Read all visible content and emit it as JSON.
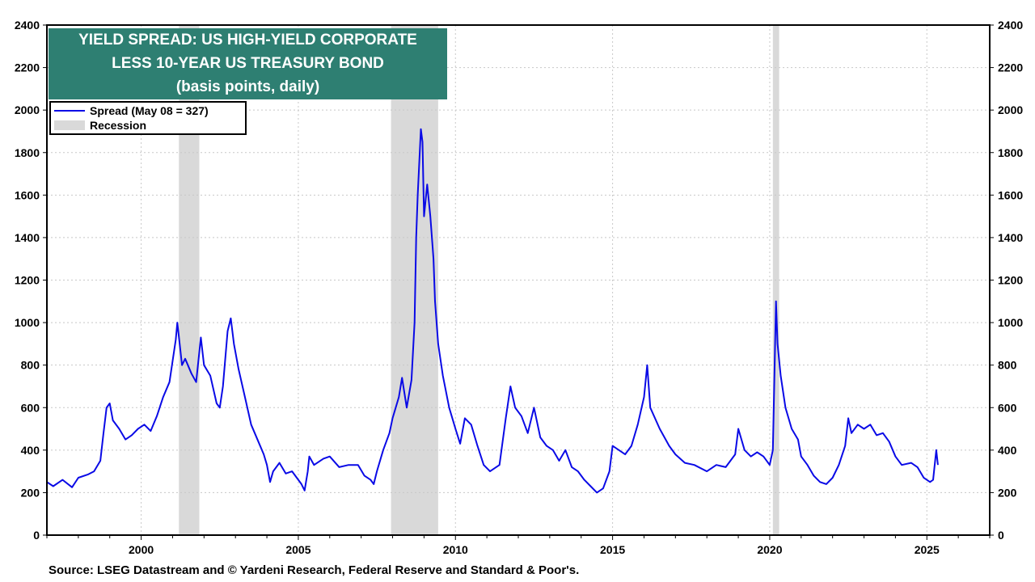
{
  "colors": {
    "series": "#0a0ae6",
    "recession": "#d9d9d9",
    "title_bg": "#2e7f72",
    "grid": "#c8c8c8"
  },
  "title": {
    "line1": "YIELD SPREAD: US HIGH-YIELD CORPORATE",
    "line2": "LESS 10-YEAR US TREASURY BOND",
    "line3": "(basis points, daily)"
  },
  "legend": {
    "series_label": "Spread (May 08 = 327)",
    "recession_label": "Recession"
  },
  "source": "Source: LSEG Datastream and © Yardeni Research, Federal Reserve and Standard & Poor's.",
  "chart_data": {
    "type": "line",
    "title": "YIELD SPREAD: US HIGH-YIELD CORPORATE LESS 10-YEAR US TREASURY BOND",
    "subtitle": "(basis points, daily)",
    "xlabel": "",
    "ylabel": "",
    "xlim": [
      1997.0,
      2027.0
    ],
    "ylim": [
      0,
      2400
    ],
    "x_ticks": [
      2000,
      2005,
      2010,
      2015,
      2020,
      2025
    ],
    "y_ticks": [
      0,
      200,
      400,
      600,
      800,
      1000,
      1200,
      1400,
      1600,
      1800,
      2000,
      2200,
      2400
    ],
    "grid": true,
    "legend_position": "top-left",
    "recessions": [
      [
        2001.2,
        2001.85
      ],
      [
        2007.95,
        2009.45
      ],
      [
        2020.1,
        2020.3
      ]
    ],
    "series": [
      {
        "name": "Spread (May 08 = 327)",
        "points": [
          [
            1997.0,
            250
          ],
          [
            1997.2,
            230
          ],
          [
            1997.5,
            260
          ],
          [
            1997.8,
            225
          ],
          [
            1998.0,
            270
          ],
          [
            1998.3,
            285
          ],
          [
            1998.5,
            300
          ],
          [
            1998.7,
            350
          ],
          [
            1998.8,
            480
          ],
          [
            1998.9,
            600
          ],
          [
            1999.0,
            620
          ],
          [
            1999.1,
            540
          ],
          [
            1999.3,
            500
          ],
          [
            1999.5,
            450
          ],
          [
            1999.7,
            470
          ],
          [
            1999.9,
            500
          ],
          [
            2000.1,
            520
          ],
          [
            2000.3,
            490
          ],
          [
            2000.5,
            560
          ],
          [
            2000.7,
            650
          ],
          [
            2000.9,
            720
          ],
          [
            2001.0,
            820
          ],
          [
            2001.1,
            920
          ],
          [
            2001.15,
            1000
          ],
          [
            2001.3,
            800
          ],
          [
            2001.4,
            830
          ],
          [
            2001.6,
            760
          ],
          [
            2001.75,
            720
          ],
          [
            2001.9,
            930
          ],
          [
            2002.0,
            800
          ],
          [
            2002.2,
            750
          ],
          [
            2002.4,
            620
          ],
          [
            2002.5,
            600
          ],
          [
            2002.6,
            700
          ],
          [
            2002.75,
            960
          ],
          [
            2002.85,
            1020
          ],
          [
            2002.95,
            900
          ],
          [
            2003.1,
            780
          ],
          [
            2003.3,
            650
          ],
          [
            2003.5,
            520
          ],
          [
            2003.7,
            450
          ],
          [
            2003.9,
            380
          ],
          [
            2004.0,
            330
          ],
          [
            2004.1,
            250
          ],
          [
            2004.2,
            300
          ],
          [
            2004.4,
            340
          ],
          [
            2004.6,
            290
          ],
          [
            2004.8,
            300
          ],
          [
            2004.95,
            270
          ],
          [
            2005.1,
            240
          ],
          [
            2005.2,
            210
          ],
          [
            2005.3,
            300
          ],
          [
            2005.35,
            370
          ],
          [
            2005.5,
            330
          ],
          [
            2005.8,
            360
          ],
          [
            2006.0,
            370
          ],
          [
            2006.3,
            320
          ],
          [
            2006.6,
            330
          ],
          [
            2006.9,
            330
          ],
          [
            2007.1,
            280
          ],
          [
            2007.3,
            260
          ],
          [
            2007.4,
            240
          ],
          [
            2007.5,
            300
          ],
          [
            2007.7,
            400
          ],
          [
            2007.9,
            480
          ],
          [
            2008.0,
            550
          ],
          [
            2008.2,
            650
          ],
          [
            2008.3,
            740
          ],
          [
            2008.45,
            600
          ],
          [
            2008.6,
            730
          ],
          [
            2008.7,
            1000
          ],
          [
            2008.75,
            1400
          ],
          [
            2008.8,
            1600
          ],
          [
            2008.9,
            1910
          ],
          [
            2008.95,
            1850
          ],
          [
            2009.0,
            1500
          ],
          [
            2009.1,
            1650
          ],
          [
            2009.2,
            1500
          ],
          [
            2009.3,
            1300
          ],
          [
            2009.35,
            1100
          ],
          [
            2009.45,
            900
          ],
          [
            2009.6,
            750
          ],
          [
            2009.8,
            600
          ],
          [
            2010.0,
            500
          ],
          [
            2010.15,
            430
          ],
          [
            2010.3,
            550
          ],
          [
            2010.5,
            520
          ],
          [
            2010.7,
            420
          ],
          [
            2010.9,
            330
          ],
          [
            2011.1,
            300
          ],
          [
            2011.4,
            330
          ],
          [
            2011.6,
            550
          ],
          [
            2011.75,
            700
          ],
          [
            2011.9,
            600
          ],
          [
            2012.1,
            560
          ],
          [
            2012.3,
            480
          ],
          [
            2012.5,
            600
          ],
          [
            2012.7,
            460
          ],
          [
            2012.9,
            420
          ],
          [
            2013.1,
            400
          ],
          [
            2013.3,
            350
          ],
          [
            2013.5,
            400
          ],
          [
            2013.7,
            320
          ],
          [
            2013.9,
            300
          ],
          [
            2014.1,
            260
          ],
          [
            2014.3,
            230
          ],
          [
            2014.5,
            200
          ],
          [
            2014.7,
            220
          ],
          [
            2014.9,
            300
          ],
          [
            2015.0,
            420
          ],
          [
            2015.2,
            400
          ],
          [
            2015.4,
            380
          ],
          [
            2015.6,
            420
          ],
          [
            2015.8,
            520
          ],
          [
            2016.0,
            650
          ],
          [
            2016.1,
            800
          ],
          [
            2016.2,
            600
          ],
          [
            2016.5,
            500
          ],
          [
            2016.8,
            420
          ],
          [
            2017.0,
            380
          ],
          [
            2017.3,
            340
          ],
          [
            2017.6,
            330
          ],
          [
            2018.0,
            300
          ],
          [
            2018.3,
            330
          ],
          [
            2018.6,
            320
          ],
          [
            2018.9,
            380
          ],
          [
            2019.0,
            500
          ],
          [
            2019.2,
            400
          ],
          [
            2019.4,
            370
          ],
          [
            2019.6,
            390
          ],
          [
            2019.8,
            370
          ],
          [
            2020.0,
            330
          ],
          [
            2020.1,
            400
          ],
          [
            2020.2,
            1100
          ],
          [
            2020.25,
            900
          ],
          [
            2020.35,
            750
          ],
          [
            2020.5,
            600
          ],
          [
            2020.7,
            500
          ],
          [
            2020.9,
            450
          ],
          [
            2021.0,
            370
          ],
          [
            2021.2,
            330
          ],
          [
            2021.4,
            280
          ],
          [
            2021.6,
            250
          ],
          [
            2021.8,
            240
          ],
          [
            2022.0,
            270
          ],
          [
            2022.2,
            330
          ],
          [
            2022.4,
            420
          ],
          [
            2022.5,
            550
          ],
          [
            2022.6,
            480
          ],
          [
            2022.8,
            520
          ],
          [
            2023.0,
            500
          ],
          [
            2023.2,
            520
          ],
          [
            2023.4,
            470
          ],
          [
            2023.6,
            480
          ],
          [
            2023.8,
            440
          ],
          [
            2024.0,
            370
          ],
          [
            2024.2,
            330
          ],
          [
            2024.5,
            340
          ],
          [
            2024.7,
            320
          ],
          [
            2024.9,
            270
          ],
          [
            2025.1,
            250
          ],
          [
            2025.2,
            260
          ],
          [
            2025.3,
            400
          ],
          [
            2025.35,
            330
          ]
        ]
      }
    ]
  }
}
